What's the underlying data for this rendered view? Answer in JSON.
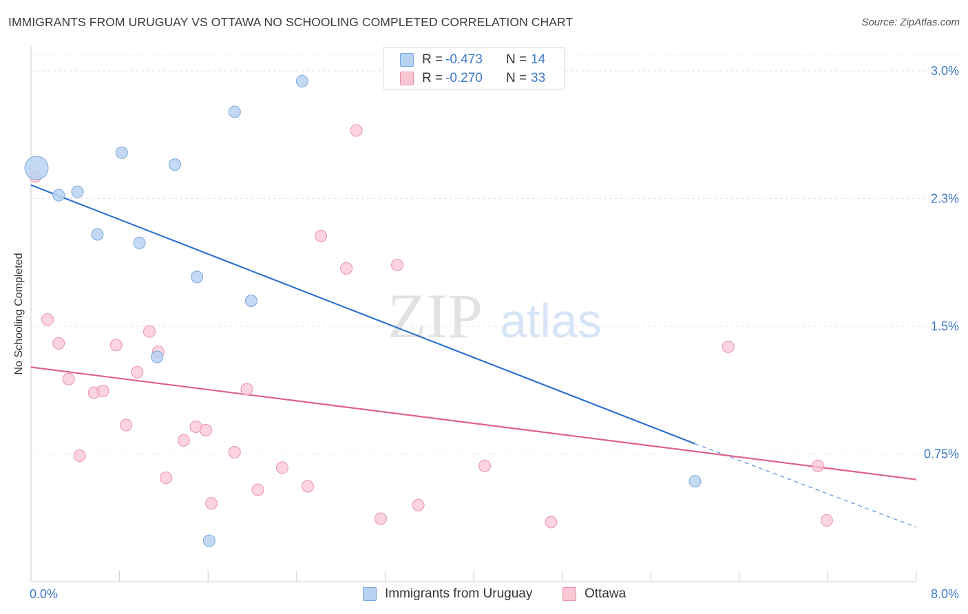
{
  "header": {
    "title": "IMMIGRANTS FROM URUGUAY VS OTTAWA NO SCHOOLING COMPLETED CORRELATION CHART",
    "source": "Source: ZipAtlas.com"
  },
  "watermark": {
    "zip": "ZIP",
    "atlas": "atlas"
  },
  "legend": {
    "items": [
      {
        "r_label": "R =",
        "r_value": "-0.473",
        "n_label": "N =",
        "n_value": "14"
      },
      {
        "r_label": "R =",
        "r_value": "-0.270",
        "n_label": "N =",
        "n_value": "33"
      }
    ]
  },
  "chart_data": {
    "type": "scatter",
    "title": "IMMIGRANTS FROM URUGUAY VS OTTAWA NO SCHOOLING COMPLETED CORRELATION CHART",
    "xlabel": "",
    "ylabel": "No Schooling Completed",
    "xlim": [
      0,
      8
    ],
    "ylim": [
      0,
      3.15
    ],
    "x_tick_labels": [
      "0.0%",
      "8.0%"
    ],
    "y_ticks": [
      0.75,
      1.5,
      2.25,
      3.0
    ],
    "y_tick_labels": [
      "0.75%",
      "1.5%",
      "2.3%",
      "3.0%"
    ],
    "grid": true,
    "colors": {
      "uruguay_fill": "#b8d2f2",
      "uruguay_stroke": "#7aa7dd",
      "uruguay_line": "#2f72d0",
      "ottawa_fill": "#f9c6d4",
      "ottawa_stroke": "#e891ad",
      "ottawa_line": "#e0628d",
      "axis_text": "#3d78c9"
    },
    "series": [
      {
        "name": "Immigrants from Uruguay",
        "r": -0.473,
        "n": 14,
        "points": [
          {
            "x": 0.05,
            "y": 2.43,
            "big": true
          },
          {
            "x": 0.25,
            "y": 2.27
          },
          {
            "x": 0.42,
            "y": 2.29
          },
          {
            "x": 0.6,
            "y": 2.04
          },
          {
            "x": 0.82,
            "y": 2.52
          },
          {
            "x": 0.98,
            "y": 1.99
          },
          {
            "x": 1.3,
            "y": 2.45
          },
          {
            "x": 1.5,
            "y": 1.79
          },
          {
            "x": 1.84,
            "y": 2.76
          },
          {
            "x": 1.99,
            "y": 1.65
          },
          {
            "x": 2.45,
            "y": 2.94
          },
          {
            "x": 1.14,
            "y": 1.32
          },
          {
            "x": 1.61,
            "y": 0.24
          },
          {
            "x": 6.0,
            "y": 0.59
          }
        ],
        "trend": {
          "x0": 0.0,
          "y0": 2.33,
          "x1": 6.0,
          "y1": 0.81,
          "dash_to_x": 8.0,
          "dash_to_y": 0.32
        }
      },
      {
        "name": "Ottawa",
        "r": -0.27,
        "n": 33,
        "points": [
          {
            "x": 0.04,
            "y": 2.38
          },
          {
            "x": 0.15,
            "y": 1.54
          },
          {
            "x": 0.25,
            "y": 1.4
          },
          {
            "x": 0.34,
            "y": 1.19
          },
          {
            "x": 0.44,
            "y": 0.74
          },
          {
            "x": 0.57,
            "y": 1.11
          },
          {
            "x": 0.65,
            "y": 1.12
          },
          {
            "x": 0.77,
            "y": 1.39
          },
          {
            "x": 0.86,
            "y": 0.92
          },
          {
            "x": 0.96,
            "y": 1.23
          },
          {
            "x": 1.07,
            "y": 1.47
          },
          {
            "x": 1.15,
            "y": 1.35
          },
          {
            "x": 1.22,
            "y": 0.61
          },
          {
            "x": 1.38,
            "y": 0.83
          },
          {
            "x": 1.49,
            "y": 0.91
          },
          {
            "x": 1.58,
            "y": 0.89
          },
          {
            "x": 1.63,
            "y": 0.46
          },
          {
            "x": 1.84,
            "y": 0.76
          },
          {
            "x": 1.95,
            "y": 1.13
          },
          {
            "x": 2.05,
            "y": 0.54
          },
          {
            "x": 2.27,
            "y": 0.67
          },
          {
            "x": 2.5,
            "y": 0.56
          },
          {
            "x": 2.62,
            "y": 2.03
          },
          {
            "x": 2.85,
            "y": 1.84
          },
          {
            "x": 2.94,
            "y": 2.65
          },
          {
            "x": 3.16,
            "y": 0.37
          },
          {
            "x": 3.31,
            "y": 1.86
          },
          {
            "x": 3.5,
            "y": 0.45
          },
          {
            "x": 4.1,
            "y": 0.68
          },
          {
            "x": 4.7,
            "y": 0.35
          },
          {
            "x": 6.3,
            "y": 1.38
          },
          {
            "x": 7.11,
            "y": 0.68
          },
          {
            "x": 7.19,
            "y": 0.36
          }
        ],
        "trend": {
          "x0": 0.0,
          "y0": 1.26,
          "x1": 8.0,
          "y1": 0.6
        }
      }
    ]
  }
}
